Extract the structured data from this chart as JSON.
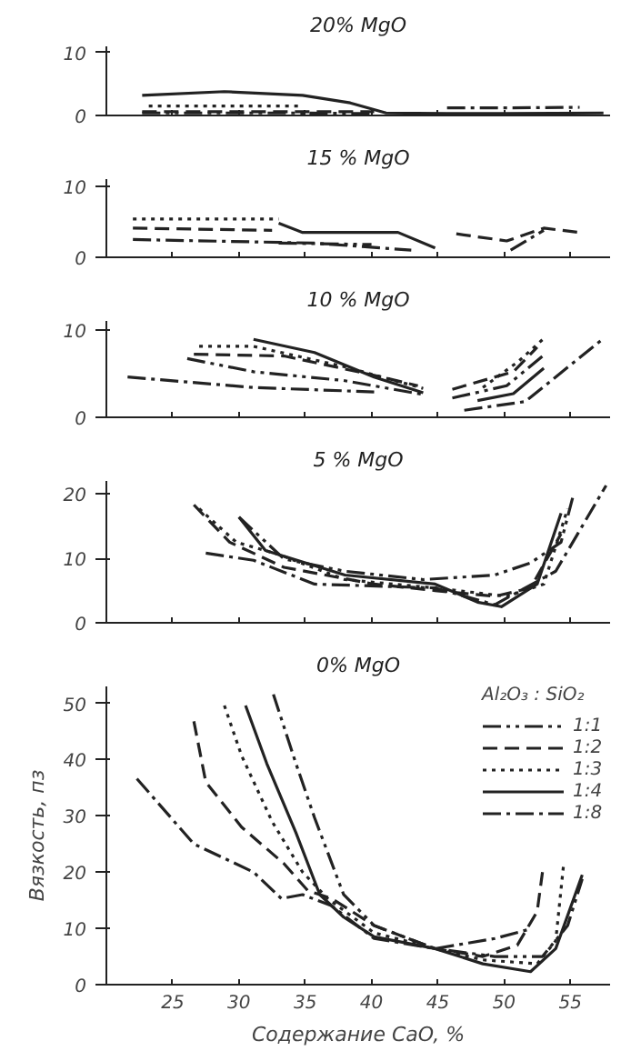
{
  "chart_data": [
    {
      "type": "line",
      "title": "20% MgO",
      "xlim": [
        20,
        58
      ],
      "xticks": [
        25,
        30,
        35,
        40,
        45,
        50,
        55
      ],
      "ylim": [
        0,
        11
      ],
      "yticks": [
        0,
        10
      ],
      "tick_labels": "y",
      "grid": false,
      "legend": false,
      "series": [
        {
          "color": "#222222",
          "line_style": "dashdotdot",
          "x": [
            22.7,
            34,
            40
          ],
          "values": [
            0.4,
            0.4,
            0.3
          ]
        },
        {
          "color": "#222222",
          "line_style": "dashed",
          "x": [
            22.7,
            40.2
          ],
          "values": [
            0.6,
            0.6
          ]
        },
        {
          "color": "#222222",
          "line_style": "dotted",
          "x": [
            23.2,
            34.8
          ],
          "values": [
            1.5,
            1.5
          ]
        },
        {
          "color": "#222222",
          "line_style": "solid",
          "x": [
            22.7,
            28.9,
            34.8,
            38.4,
            41.1,
            45.7,
            50,
            57.5
          ],
          "values": [
            3.2,
            3.8,
            3.2,
            2,
            0.4,
            0.3,
            0.3,
            0.4
          ]
        },
        {
          "color": "#222222",
          "line_style": "dashdot",
          "x": [
            45.7,
            50,
            55.7
          ],
          "values": [
            1.2,
            1.2,
            1.3
          ]
        }
      ]
    },
    {
      "type": "line",
      "title": "15 % MgO",
      "xlim": [
        20,
        58
      ],
      "xticks": [
        25,
        30,
        35,
        40,
        45,
        50,
        55
      ],
      "ylim": [
        0,
        11
      ],
      "yticks": [
        0,
        10
      ],
      "tick_labels": "y",
      "grid": false,
      "legend": false,
      "series": [
        {
          "color": "#222222",
          "line_style": "dashdotdot",
          "x": [
            33,
            40
          ],
          "values": [
            2,
            1.8
          ]
        },
        {
          "color": "#222222",
          "line_style": "dashed",
          "x": [
            22,
            32.5,
            39,
            46.4,
            50.2,
            53,
            55.7
          ],
          "values": [
            4.1,
            3.8,
            null,
            3.3,
            2.3,
            4.1,
            3.5
          ]
        },
        {
          "color": "#222222",
          "line_style": "dotted",
          "x": [
            22,
            33
          ],
          "values": [
            5.4,
            5.4
          ]
        },
        {
          "color": "#222222",
          "line_style": "solid",
          "x": [
            33,
            34.8,
            42,
            44.8
          ],
          "values": [
            4.8,
            3.5,
            3.5,
            1.3
          ]
        },
        {
          "color": "#222222",
          "line_style": "dashdot",
          "x": [
            22,
            35.7,
            43,
            47,
            50.5,
            53
          ],
          "values": [
            2.5,
            2,
            1,
            null,
            1,
            3.8
          ]
        }
      ]
    },
    {
      "type": "line",
      "title": "10 % MgO",
      "xlim": [
        20,
        58
      ],
      "xticks": [
        25,
        30,
        35,
        40,
        45,
        50,
        55
      ],
      "ylim": [
        0,
        11
      ],
      "yticks": [
        0,
        10
      ],
      "tick_labels": "y",
      "grid": false,
      "legend": false,
      "series": [
        {
          "color": "#222222",
          "line_style": "dashdotdot",
          "x": [
            26.1,
            31.1,
            37.9,
            43.9,
            45,
            46.1,
            50.2,
            53
          ],
          "values": [
            6.7,
            5.2,
            4.2,
            2.6,
            null,
            2.2,
            3.6,
            7.1
          ]
        },
        {
          "color": "#222222",
          "line_style": "dashed",
          "x": [
            26.6,
            33.4,
            40.2,
            43.5,
            45,
            46.1,
            50.7,
            52.5
          ],
          "values": [
            7.2,
            7,
            4.8,
            3.6,
            null,
            3.2,
            5.2,
            8
          ]
        },
        {
          "color": "#222222",
          "line_style": "dotted",
          "x": [
            27,
            31.1,
            37.9,
            43.9,
            46,
            48.4,
            51.1,
            53
          ],
          "values": [
            8.1,
            8.1,
            5.8,
            3.3,
            null,
            3.4,
            6.4,
            9
          ]
        },
        {
          "color": "#222222",
          "line_style": "solid",
          "x": [
            31.1,
            35.7,
            40.2,
            43.9,
            45.5,
            48,
            50.7,
            53
          ],
          "values": [
            8.9,
            7.4,
            4.6,
            2.8,
            null,
            1.9,
            2.7,
            5.6
          ]
        },
        {
          "color": "#222222",
          "line_style": "dashdot",
          "x": [
            21.6,
            31.1,
            40.2,
            43.5,
            47,
            51.6,
            57.5
          ],
          "values": [
            4.6,
            3.4,
            2.9,
            null,
            0.8,
            1.8,
            9
          ]
        }
      ]
    },
    {
      "type": "line",
      "title": "5 % MgO",
      "xlim": [
        20,
        58
      ],
      "xticks": [
        25,
        30,
        35,
        40,
        45,
        50,
        55
      ],
      "ylim": [
        0,
        22
      ],
      "yticks": [
        0,
        10,
        20
      ],
      "tick_labels": "y",
      "grid": false,
      "legend": false,
      "series": [
        {
          "color": "#222222",
          "line_style": "dashdotdot",
          "x": [
            30,
            33.4,
            38,
            43.9,
            49.3,
            52,
            54.3,
            55.2
          ],
          "values": [
            16.4,
            9.9,
            8,
            6.7,
            7.4,
            9.3,
            12.5,
            19.6
          ]
        },
        {
          "color": "#222222",
          "line_style": "dashed",
          "x": [
            26.6,
            29.3,
            33.4,
            40.2,
            44.8,
            49.3,
            52,
            54.3
          ],
          "values": [
            18.3,
            12.5,
            8.6,
            6,
            5,
            4.1,
            5.4,
            13.8
          ]
        },
        {
          "color": "#222222",
          "line_style": "dotted",
          "x": [
            27,
            29.8,
            33,
            38,
            44.8,
            50.2,
            53,
            54.8
          ],
          "values": [
            17.7,
            12.5,
            10.6,
            6.7,
            5.4,
            4.1,
            6,
            17.7
          ]
        },
        {
          "color": "#222222",
          "line_style": "solid",
          "x": [
            30,
            32,
            38,
            44.8,
            48,
            49.8,
            52.5,
            54.3
          ],
          "values": [
            16.4,
            11.2,
            7.4,
            6,
            3.2,
            2.5,
            6,
            17
          ]
        },
        {
          "color": "#222222",
          "line_style": "dashdot",
          "x": [
            27.5,
            31.1,
            35.7,
            44.8,
            49.3,
            53.9,
            57.7
          ],
          "values": [
            10.8,
            9.7,
            6,
            5.4,
            2.8,
            8,
            21.3
          ]
        }
      ]
    },
    {
      "type": "line",
      "title": "0% MgO",
      "xlabel": "Содержание CaO, %",
      "ylabel": "Вязкость, пз",
      "legend_title": "Al₂O₃ : SiO₂",
      "legend": "top right",
      "xlim": [
        20,
        58
      ],
      "xticks": [
        25,
        30,
        35,
        40,
        45,
        50,
        55
      ],
      "ylim": [
        0,
        53
      ],
      "yticks": [
        0,
        10,
        20,
        30,
        40,
        50
      ],
      "grid": false,
      "series": [
        {
          "name": "1:1",
          "color": "#222222",
          "line_style": "dashdotdot",
          "x": [
            32.6,
            34.3,
            35.7,
            37.9,
            40.2,
            44.8,
            49.3,
            52.9,
            54.8,
            55.9
          ],
          "values": [
            51.6,
            39.3,
            29.7,
            16,
            10.5,
            6.4,
            5,
            5,
            10.5,
            18.8
          ]
        },
        {
          "name": "1:2",
          "color": "#222222",
          "line_style": "dashed",
          "x": [
            26.6,
            27.5,
            30.2,
            33.4,
            35.2,
            37,
            40.2,
            44.8,
            48.4,
            51,
            52.5,
            52.9
          ],
          "values": [
            46.8,
            36,
            28,
            21.5,
            16.7,
            15.3,
            10.5,
            6.4,
            5,
            7,
            13,
            20
          ]
        },
        {
          "name": "1:3",
          "color": "#222222",
          "line_style": "dotted",
          "x": [
            28.9,
            30.2,
            32.5,
            34.8,
            36.7,
            40.2,
            44.8,
            48.4,
            52.5,
            53.9,
            54.5
          ],
          "values": [
            49.6,
            40.7,
            29,
            20,
            15.3,
            9.2,
            6.4,
            4.4,
            3.7,
            7.8,
            21.5
          ]
        },
        {
          "name": "1:4",
          "color": "#222222",
          "line_style": "solid",
          "x": [
            30.5,
            32.1,
            34.3,
            36.1,
            37.9,
            40.2,
            44.8,
            48.4,
            52,
            53.9,
            55.9
          ],
          "values": [
            49.6,
            39.3,
            27,
            16,
            12,
            8.5,
            6.4,
            3.7,
            2.3,
            6.4,
            19.5
          ]
        },
        {
          "name": "1:8",
          "color": "#222222",
          "line_style": "dashdot",
          "x": [
            22.3,
            26.6,
            31.1,
            33.2,
            34.8,
            37,
            40.2,
            44.8,
            49.3,
            52
          ],
          "values": [
            36.6,
            25,
            20,
            15.3,
            16,
            14,
            8.2,
            6.4,
            8.2,
            9.9
          ]
        }
      ]
    }
  ]
}
